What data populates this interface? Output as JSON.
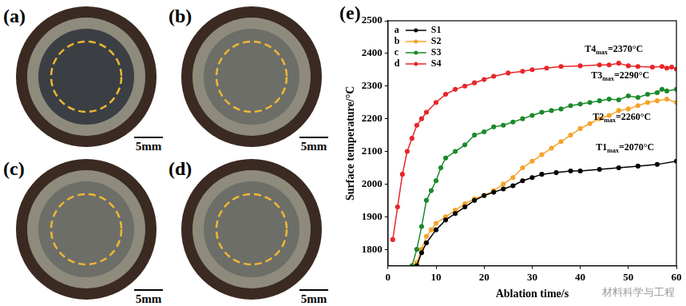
{
  "panels": [
    {
      "label": "(a)",
      "scale_bar": "5mm"
    },
    {
      "label": "(b)",
      "scale_bar": "5mm"
    },
    {
      "label": "(c)",
      "scale_bar": "5mm"
    },
    {
      "label": "(d)",
      "scale_bar": "5mm"
    }
  ],
  "watermark": "材料科学与工程",
  "chart_data": {
    "type": "line",
    "label": "(e)",
    "x_label": "Ablation time/s",
    "y_label": "Surface temperature/°C",
    "xlim": [
      0,
      60
    ],
    "xticks": [
      0,
      10,
      20,
      30,
      40,
      50,
      60
    ],
    "ylim": [
      1750,
      2500
    ],
    "yticks": [
      1800,
      1900,
      2000,
      2100,
      2200,
      2300,
      2400,
      2500
    ],
    "grid": false,
    "legend": "upper left",
    "series": [
      {
        "panel": "a",
        "name": "S1",
        "color": "#000000",
        "marker": "circle",
        "x": [
          6,
          7,
          8,
          10,
          12,
          14,
          16,
          18,
          20,
          22,
          24,
          26,
          28,
          30,
          32,
          35,
          38,
          40,
          44,
          48,
          52,
          56,
          60
        ],
        "values": [
          1750,
          1790,
          1820,
          1860,
          1890,
          1910,
          1930,
          1950,
          1965,
          1975,
          1985,
          1995,
          2010,
          2020,
          2030,
          2035,
          2040,
          2040,
          2045,
          2050,
          2055,
          2060,
          2070
        ]
      },
      {
        "panel": "b",
        "name": "S2",
        "color": "#f4a32a",
        "marker": "circle",
        "x": [
          6,
          7,
          8,
          9,
          10,
          12,
          14,
          16,
          18,
          20,
          22,
          24,
          26,
          28,
          30,
          32,
          34,
          36,
          38,
          40,
          42,
          44,
          46,
          48,
          50,
          52,
          54,
          56,
          58,
          60
        ],
        "values": [
          1760,
          1800,
          1840,
          1860,
          1880,
          1900,
          1920,
          1940,
          1955,
          1965,
          1980,
          2000,
          2020,
          2050,
          2070,
          2090,
          2110,
          2130,
          2150,
          2170,
          2185,
          2200,
          2210,
          2225,
          2230,
          2240,
          2250,
          2255,
          2260,
          2250
        ]
      },
      {
        "panel": "c",
        "name": "S3",
        "color": "#1a8a2a",
        "marker": "circle",
        "x": [
          5,
          6,
          7,
          8,
          9,
          10,
          11,
          12,
          14,
          16,
          18,
          20,
          22,
          24,
          26,
          28,
          30,
          32,
          34,
          36,
          38,
          40,
          42,
          44,
          46,
          48,
          50,
          52,
          54,
          56,
          57,
          58,
          60
        ],
        "values": [
          1750,
          1800,
          1870,
          1950,
          1980,
          2010,
          2050,
          2080,
          2100,
          2120,
          2150,
          2160,
          2175,
          2180,
          2190,
          2200,
          2210,
          2220,
          2225,
          2230,
          2240,
          2245,
          2250,
          2255,
          2260,
          2258,
          2270,
          2265,
          2275,
          2280,
          2290,
          2285,
          2290
        ]
      },
      {
        "panel": "d",
        "name": "S4",
        "color": "#e8262a",
        "marker": "circle",
        "x": [
          1,
          2,
          3,
          4,
          5,
          6,
          7,
          8,
          10,
          12,
          14,
          16,
          18,
          20,
          22,
          25,
          28,
          30,
          33,
          36,
          40,
          44,
          46,
          48,
          50,
          52,
          55,
          57,
          58,
          59,
          60
        ],
        "values": [
          1830,
          1930,
          2030,
          2100,
          2140,
          2180,
          2200,
          2220,
          2250,
          2275,
          2290,
          2300,
          2310,
          2320,
          2330,
          2340,
          2345,
          2350,
          2355,
          2360,
          2362,
          2365,
          2365,
          2370,
          2362,
          2360,
          2358,
          2360,
          2355,
          2358,
          2352
        ]
      }
    ],
    "annotations": [
      {
        "series": "S1",
        "value": 2070,
        "label": "T1max=2070°C"
      },
      {
        "series": "S2",
        "value": 2260,
        "label": "T2max=2260°C"
      },
      {
        "series": "S3",
        "value": 2290,
        "label": "T3max=2290°C"
      },
      {
        "series": "S4",
        "value": 2370,
        "label": "T4max=2370°C"
      }
    ]
  }
}
